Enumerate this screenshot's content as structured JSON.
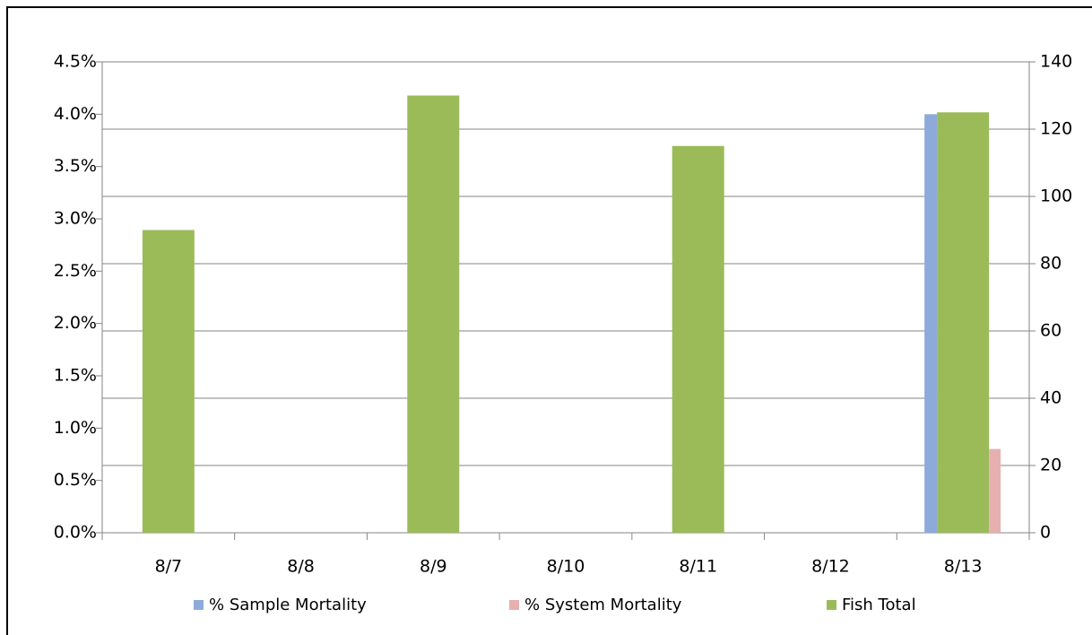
{
  "chart_data": {
    "type": "bar",
    "categories": [
      "8/7",
      "8/8",
      "8/9",
      "8/10",
      "8/11",
      "8/12",
      "8/13"
    ],
    "series": [
      {
        "name": "% Sample Mortality",
        "color": "#8eaadb",
        "axis": "y",
        "values": [
          null,
          null,
          null,
          null,
          null,
          null,
          4.0
        ]
      },
      {
        "name": "% System Mortality",
        "color": "#e6b0b0",
        "axis": "y",
        "values": [
          null,
          null,
          null,
          null,
          null,
          null,
          0.8
        ]
      },
      {
        "name": "Fish Total",
        "color": "#9bbb59",
        "axis": "y2",
        "values": [
          90,
          null,
          130,
          null,
          115,
          null,
          125
        ]
      }
    ],
    "ylim": [
      0,
      4.5
    ],
    "yticks": [
      {
        "value": 0,
        "label": "0.0%"
      },
      {
        "value": 0.5,
        "label": "0.5%"
      },
      {
        "value": 1,
        "label": "1.0%"
      },
      {
        "value": 1.5,
        "label": "1.5%"
      },
      {
        "value": 2,
        "label": "2.0%"
      },
      {
        "value": 2.5,
        "label": "2.5%"
      },
      {
        "value": 3,
        "label": "3.0%"
      },
      {
        "value": 3.5,
        "label": "3.5%"
      },
      {
        "value": 4,
        "label": "4.0%"
      },
      {
        "value": 4.5,
        "label": "4.5%"
      }
    ],
    "y2lim": [
      0,
      140
    ],
    "y2ticks": [
      0,
      20,
      40,
      60,
      80,
      100,
      120,
      140
    ],
    "grid": true,
    "legend": "bottom"
  }
}
